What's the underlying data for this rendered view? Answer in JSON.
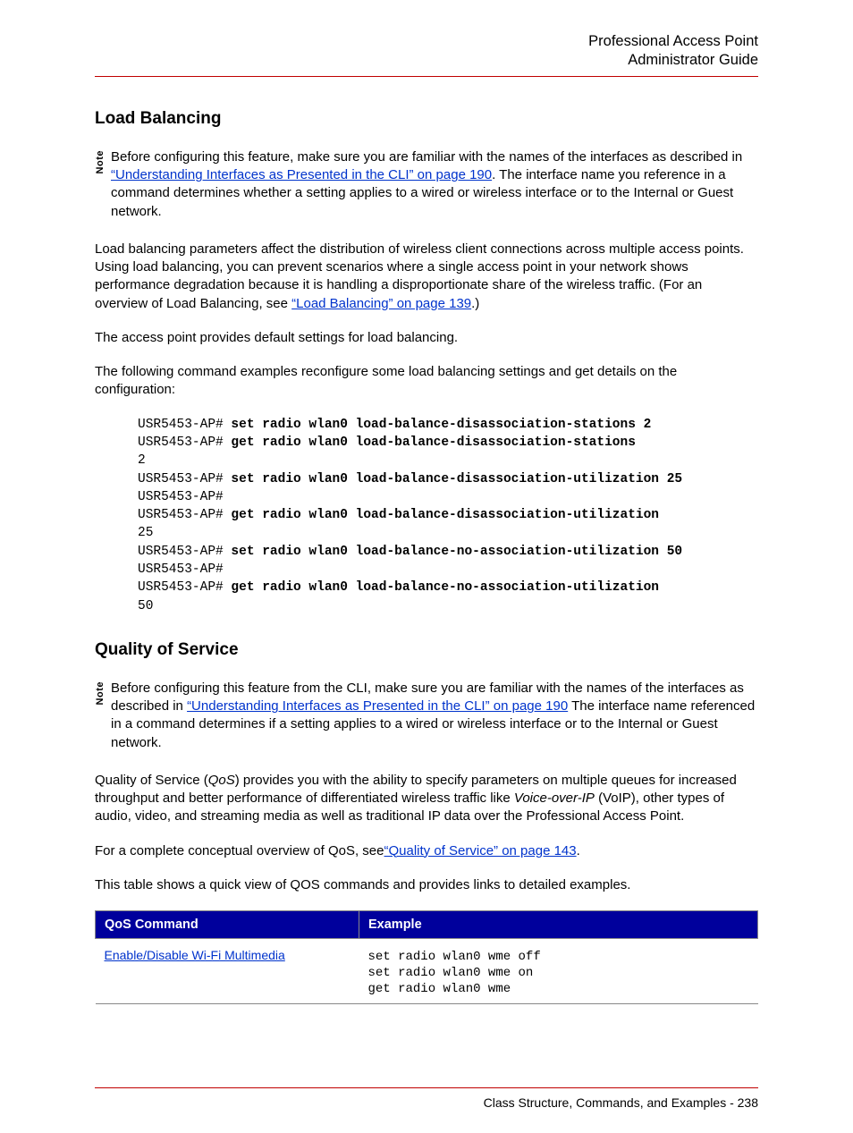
{
  "header": {
    "line1": "Professional Access Point",
    "line2": "Administrator Guide"
  },
  "s1": {
    "heading": "Load Balancing",
    "note_label": "Note",
    "note_pre": "Before configuring this feature, make sure you are familiar with the names of the interfaces as described in ",
    "note_link": "“Understanding Interfaces as Presented in the CLI” on page 190",
    "note_post": ". The interface name you reference in a command determines whether a setting applies to a wired or wireless interface or to the Internal or Guest network.",
    "p1_pre": "Load balancing parameters affect the distribution of wireless client connections across multiple access points. Using load balancing, you can prevent scenarios where a single access point in your network shows performance degradation because it is handling a disproportionate share of the wireless traffic. (For an overview of Load Balancing, see ",
    "p1_link": "“Load Balancing” on page 139",
    "p1_post": ".)",
    "p2": "The access point provides default settings for load balancing.",
    "p3": "The following command examples reconfigure some load balancing settings and get details on the configuration:"
  },
  "code": {
    "prompt": "USR5453-AP#",
    "l1b": "set radio wlan0 load-balance-disassociation-stations 2",
    "l2b": "get radio wlan0 load-balance-disassociation-stations",
    "l3": "2",
    "l4b": "set radio wlan0 load-balance-disassociation-utilization 25",
    "l6b": "get radio wlan0 load-balance-disassociation-utilization",
    "l7": "25",
    "l8b": "set radio wlan0 load-balance-no-association-utilization 50",
    "l10b": "get radio wlan0 load-balance-no-association-utilization",
    "l11": "50"
  },
  "s2": {
    "heading": "Quality of Service",
    "note_label": "Note",
    "note_pre": "Before configuring this feature from the CLI, make sure you are familiar with the names of the interfaces as described in ",
    "note_link": "“Understanding Interfaces as Presented in the CLI” on page 190",
    "note_post": " The interface name referenced in a command determines if a setting applies to a wired or wireless interface or to the Internal or Guest network.",
    "p1a": "Quality of Service (",
    "p1b": "QoS",
    "p1c": ") provides you with the ability to specify parameters on multiple queues for increased throughput and better performance of differentiated wireless traffic like ",
    "p1d": "Voice-over-IP",
    "p1e": " (VoIP), other types of audio, video, and streaming media as well as traditional IP data over the Professional Access Point.",
    "p2_pre": "For a complete conceptual overview of QoS, see",
    "p2_link": "“Quality of Service” on page 143",
    "p2_post": ".",
    "p3": "This table shows a quick view of QOS commands and provides links to detailed examples."
  },
  "table": {
    "th1": "QoS Command",
    "th2": "Example",
    "r1c1": "Enable/Disable Wi-Fi Multimedia",
    "r1c2": "set radio wlan0 wme off\nset radio wlan0 wme on\nget radio wlan0 wme"
  },
  "footer": {
    "text": "Class Structure, Commands, and Examples - 238"
  }
}
